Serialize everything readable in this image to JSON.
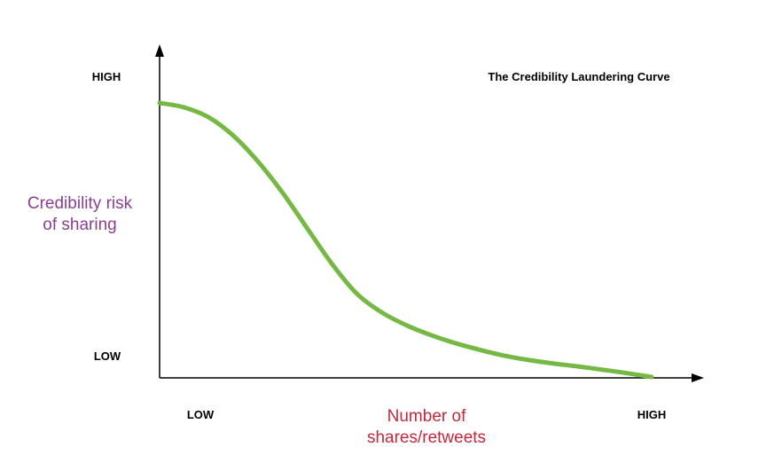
{
  "chart_data": {
    "type": "line",
    "title": "The Credibility Laundering Curve",
    "ylabel_lines": [
      "Credibility risk",
      "of sharing"
    ],
    "xlabel_lines": [
      "Number of",
      "shares/retweets"
    ],
    "y_ticks": {
      "high": "HIGH",
      "low": "LOW"
    },
    "x_ticks": {
      "low": "LOW",
      "high": "HIGH"
    },
    "xlim": [
      0,
      1
    ],
    "ylim": [
      0,
      1
    ],
    "grid": false,
    "legend": "none",
    "series": [
      {
        "color": "#75b843",
        "x": [
          0,
          0.05,
          0.1,
          0.15,
          0.2,
          0.25,
          0.3,
          0.35,
          0.4,
          0.45,
          0.5,
          0.55,
          0.6,
          0.65,
          0.7,
          0.75,
          0.8,
          0.85,
          0.9,
          0.95,
          1.0
        ],
        "y": [
          0.936,
          0.921,
          0.887,
          0.824,
          0.736,
          0.629,
          0.508,
          0.387,
          0.286,
          0.222,
          0.178,
          0.144,
          0.116,
          0.093,
          0.073,
          0.058,
          0.046,
          0.036,
          0.025,
          0.013,
          0.0
        ]
      }
    ],
    "colors": {
      "axis": "#000000",
      "ylabel": "#8b3f8c",
      "xlabel": "#c3283d"
    }
  }
}
